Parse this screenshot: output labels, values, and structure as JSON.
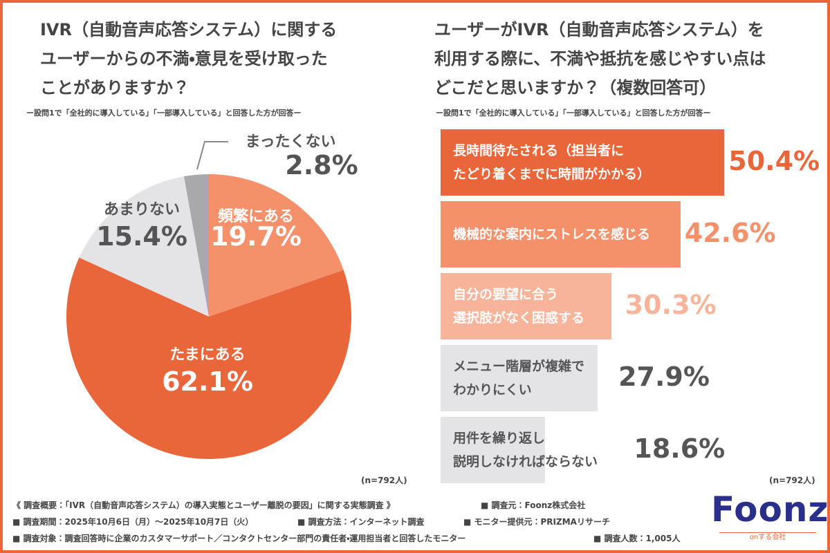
{
  "chart_data": [
    {
      "type": "pie",
      "title": "IVR（自動音声応答システム）に関する\nユーザーからの不満・意見を受け取った\nことがありますか？",
      "subtitle": "ー設問1で「全社的に導入している」「一部導入している」と回答した方が回答ー",
      "categories": [
        "頻繁にある",
        "たまにある",
        "あまりない",
        "まったくない"
      ],
      "values": [
        19.7,
        62.1,
        15.4,
        2.8
      ],
      "value_labels": [
        "19.7%",
        "62.1%",
        "15.4%",
        "2.8%"
      ],
      "colors": [
        "#f4906a",
        "#e8663a",
        "#e4e4e6",
        "#a9a9ab"
      ],
      "label_colors": [
        "#ffffff",
        "#ffffff",
        "#555555",
        "#555555"
      ],
      "note": "(n=792人)"
    },
    {
      "type": "hbar",
      "title": "ユーザーがIVR（自動音声応答システム）を\n利用する際に、不満や抵抗を感じやすい点は\nどこだと思いますか？（複数回答可）",
      "subtitle": "ー設問1で「全社的に導入している」「一部導入している」と回答した方が回答ー",
      "categories": [
        "長時間待たされる（担当者に\nたどり着くまでに時間がかかる）",
        "機械的な案内にストレスを感じる",
        "自分の要望に合う\n選択肢がなく困惑する",
        "メニュー階層が複雑で\nわかりにくい",
        "用件を繰り返し\n説明しなければならない"
      ],
      "values": [
        50.4,
        42.6,
        30.3,
        27.9,
        18.6
      ],
      "value_labels": [
        "50.4%",
        "42.6%",
        "30.3%",
        "27.9%",
        "18.6%"
      ],
      "colors": [
        "#e8663a",
        "#f4906a",
        "#f8b49a",
        "#e4e4e6",
        "#e4e4e6"
      ],
      "label_colors": [
        "#e8663a",
        "#f4906a",
        "#f8b49a",
        "#555555",
        "#555555"
      ],
      "note": "(n=792人)"
    }
  ],
  "footer": {
    "summary": "《 調査概要：「IVR（自動音声応答システム）の導入実態とユーザー離脱の要因」に関する実態調査 》",
    "items": [
      "■ 調査元：Foonz株式会社",
      "■ 調査期間：2025年10月6日（月）〜2025年10月7日（火）",
      "■ 調査方法：インターネット調査",
      "■ モニター提供元：PRIZMAリサーチ",
      "■ 調査対象：調査回答時に企業のカスタマーサポート／コンタクトセンター部門の責任者・運用担当者と回答したモニター",
      "■ 調査人数：1,005人"
    ]
  },
  "logo": {
    "name": "Foonz",
    "tagline": "onする会社"
  }
}
